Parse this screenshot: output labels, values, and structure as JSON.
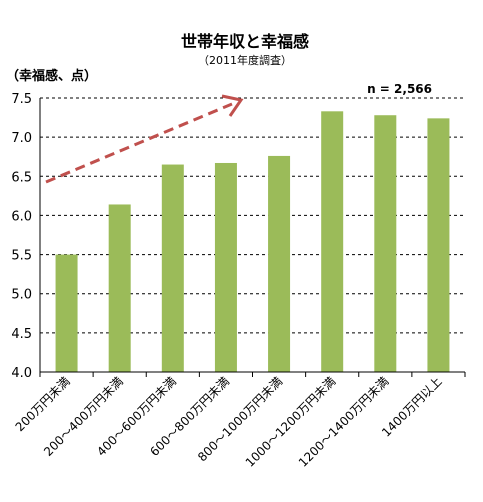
{
  "chart_data": {
    "type": "bar",
    "title": "世帯年収と幸福感",
    "subtitle": "（2011年度調査）",
    "ylabel": "（幸福感、点）",
    "annotation": "n = 2,566",
    "categories": [
      "200万円未満",
      "200～400万円未満",
      "400～600万円未満",
      "600～800万円未満",
      "800～1000万円未満",
      "1000～1200万円未満",
      "1200～1400万円未満",
      "1400万円以上"
    ],
    "values": [
      5.5,
      6.14,
      6.65,
      6.67,
      6.76,
      7.33,
      7.28,
      7.24
    ],
    "ylim": [
      4.0,
      7.5
    ],
    "yticks": [
      "4.0",
      "4.5",
      "5.0",
      "5.5",
      "6.0",
      "6.5",
      "7.0",
      "7.5"
    ],
    "grid": "dashed-horizontal",
    "bar_color": "#9bbb59",
    "trend_arrow_color": "#c0504d"
  }
}
